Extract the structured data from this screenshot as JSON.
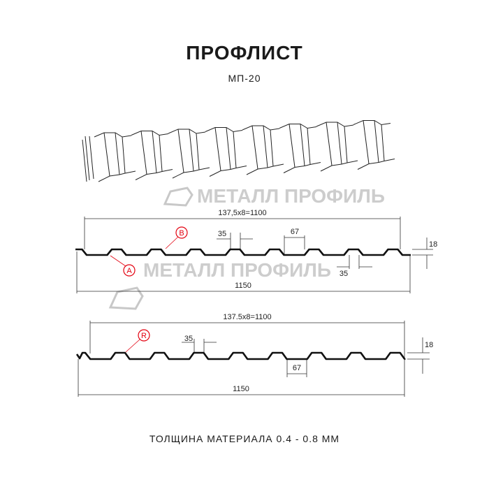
{
  "header": {
    "title": "ПРОФЛИСТ",
    "model": "МП-20"
  },
  "footer": {
    "thickness": "ТОЛЩИНА МАТЕРИАЛА 0.4 - 0.8 ММ"
  },
  "watermark": {
    "text": "МЕТАЛЛ ПРОФИЛЬ"
  },
  "colors": {
    "profile": "#111111",
    "marker": "#e3000f",
    "watermark": "#bdbdbd"
  },
  "profile_top": {
    "working_width": "137,5x8=1100",
    "full_width": "1150",
    "top_width": "35",
    "bottom_gap": "35",
    "bottom_width": "67",
    "height": "18",
    "marker_a": "A",
    "marker_b": "B"
  },
  "profile_bottom": {
    "working_width": "137.5x8=1100",
    "full_width": "1150",
    "top_width": "35",
    "bottom_width": "67",
    "height": "18",
    "marker_r": "R"
  }
}
